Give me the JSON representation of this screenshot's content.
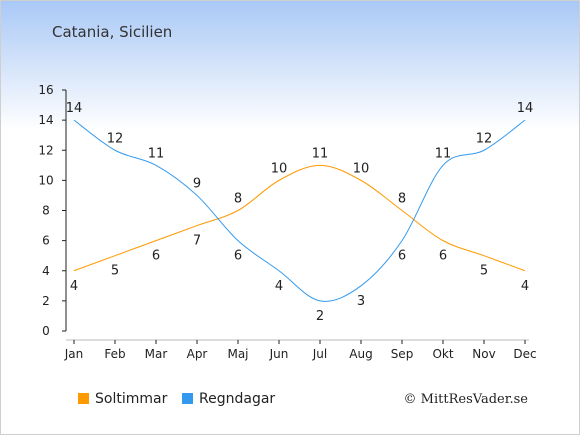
{
  "chart_data": {
    "type": "line",
    "title": "Catania, Sicilien",
    "categories": [
      "Jan",
      "Feb",
      "Mar",
      "Apr",
      "Maj",
      "Jun",
      "Jul",
      "Aug",
      "Sep",
      "Okt",
      "Nov",
      "Dec"
    ],
    "ylim": [
      0,
      16
    ],
    "yticks": [
      0,
      2,
      4,
      6,
      8,
      10,
      12,
      14,
      16
    ],
    "grid": false,
    "legend_position": "bottom-left",
    "series": [
      {
        "name": "Soltimmar",
        "color": "#FF9900",
        "values": [
          4,
          5,
          6,
          7,
          8,
          10,
          11,
          10,
          8,
          6,
          5,
          4
        ]
      },
      {
        "name": "Regndagar",
        "color": "#3399EE",
        "values": [
          14,
          12,
          11,
          9,
          6,
          4,
          2,
          3,
          6,
          11,
          12,
          14
        ]
      }
    ]
  },
  "copyright": "© MittResVader.se"
}
